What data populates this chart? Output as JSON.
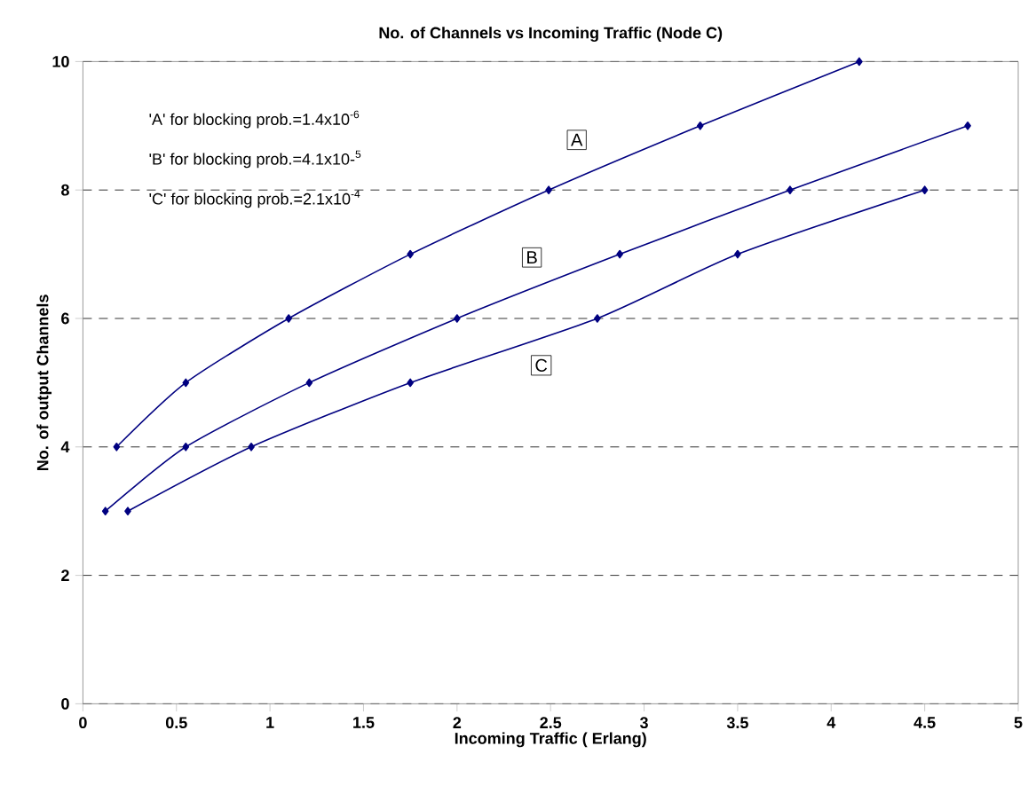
{
  "chart_data": {
    "type": "line",
    "title": "No. of Channels vs Incoming Traffic (Node C)",
    "xlabel": "Incoming Traffic ( Erlang)",
    "ylabel": "No. of output Channels",
    "xlim": [
      0,
      5
    ],
    "xticks": [
      0,
      0.5,
      1,
      1.5,
      2,
      2.5,
      3,
      3.5,
      4,
      4.5,
      5
    ],
    "ylim": [
      0,
      10
    ],
    "yticks": [
      0,
      2,
      4,
      6,
      8,
      10
    ],
    "grid": "y",
    "marker": "diamond",
    "line_style": "solid",
    "series": [
      {
        "color": "#000080",
        "x": [
          0.18,
          0.55,
          1.1,
          1.75,
          2.49,
          3.3,
          4.15
        ],
        "values": [
          4,
          5,
          6,
          7,
          8,
          9,
          10
        ]
      },
      {
        "color": "#000080",
        "x": [
          0.12,
          0.55,
          1.21,
          2.0,
          2.87,
          3.78,
          4.73
        ],
        "values": [
          3,
          4,
          5,
          6,
          7,
          8,
          9
        ]
      },
      {
        "color": "#000080",
        "x": [
          0.24,
          0.9,
          1.75,
          2.75,
          3.5,
          4.5
        ],
        "values": [
          3,
          4,
          5,
          6,
          7,
          8
        ]
      }
    ],
    "annotations": [
      "'A' for blocking prob.=1.4x10$^{-6}$",
      "'B' for blocking prob.=4.1x10-$^{5}$",
      "'C' for blocking prob.=2.1x10$^{-4}$",
      {
        "text": "A",
        "x": 2.64,
        "y": 8.78
      },
      {
        "text": "B",
        "x": 2.4,
        "y": 6.95
      },
      {
        "text": "C",
        "x": 2.45,
        "y": 5.27
      }
    ]
  }
}
